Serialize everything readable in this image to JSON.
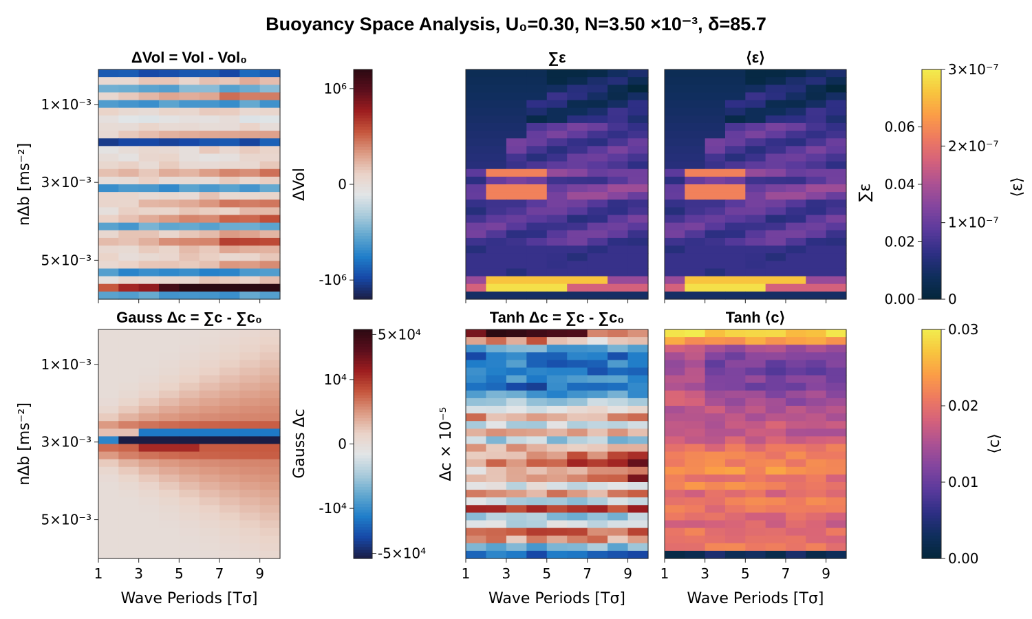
{
  "figure": {
    "title": "Buoyancy Space Analysis, U₀=0.30, N=3.50 ×10⁻³, δ=85.7"
  },
  "colors": {
    "diverging": [
      "#1b1d44",
      "#1747a6",
      "#1f7dc9",
      "#5fa6cf",
      "#a9cbdb",
      "#e2e5e7",
      "#ead3c8",
      "#dc9a83",
      "#c6573d",
      "#9d1d1f",
      "#5a0e1c",
      "#2b0a12"
    ],
    "thermal": [
      "#03273b",
      "#0f2e5c",
      "#2e2f85",
      "#5a3a9c",
      "#82459f",
      "#ab5193",
      "#d4617c",
      "#ee7a60",
      "#fb9c47",
      "#f8c43e",
      "#f2ec4e"
    ]
  },
  "chart_data": [
    {
      "id": "dvol",
      "type": "heatmap",
      "title": "ΔVol = Vol - Vol₀",
      "xlabel": "",
      "ylabel": "nΔb [ms⁻²]",
      "x_ticks": [
        1,
        3,
        5,
        7,
        9
      ],
      "xlim": [
        1,
        10
      ],
      "y_tick_labels": [
        "1×10⁻³",
        "3×10⁻³",
        "5×10⁻³"
      ],
      "y_ticks": [
        1,
        3,
        5
      ],
      "ylim": [
        0.1,
        6.0
      ],
      "y_unit_note": "×10⁻³",
      "colormap": "diverging",
      "clim": [
        -1200000,
        1200000
      ],
      "rows": 30,
      "row_values": [
        -0.9,
        0.35,
        -0.5,
        0.6,
        -0.6,
        0.15,
        -0.15,
        0.1,
        0.3,
        -0.95,
        0.1,
        0.05,
        0.2,
        0.45,
        0.2,
        -0.6,
        0.2,
        0.4,
        0.15,
        0.5,
        -0.55,
        0.25,
        0.7,
        0.3,
        0.2,
        0.4,
        -0.65,
        0.2,
        1.2,
        -0.6
      ],
      "row_trend": [
        0.5,
        0.2,
        0.1,
        0.3,
        -0.2,
        0.4,
        0.2,
        0.1,
        0.6,
        0.2,
        0.3,
        0.1,
        0.2,
        0.8,
        0.2,
        0.3,
        0.2,
        0.9,
        0.5,
        0.7,
        0.2,
        0.9,
        0.6,
        0.4,
        0.3,
        0.5,
        0.2,
        0.4,
        1.6,
        0.3
      ]
    },
    {
      "id": "dvol_cbar",
      "type": "colorbar",
      "ylabel": "ΔVol",
      "tick_labels": [
        "10⁶",
        "0",
        "-10⁶"
      ],
      "ticks": [
        1000000,
        0,
        -1000000
      ],
      "clim": [
        -1200000,
        1200000
      ],
      "colormap": "diverging"
    },
    {
      "id": "sum_eps",
      "type": "heatmap",
      "title": "∑ε",
      "x_ticks": [
        1,
        3,
        5,
        7,
        9
      ],
      "xlim": [
        1,
        10
      ],
      "colormap": "thermal",
      "clim": [
        0,
        0.08
      ],
      "rows": 30,
      "hot_rows": {
        "13": 0.045,
        "15": 0.04,
        "16": 0.038,
        "27": 0.055,
        "28": 0.075
      }
    },
    {
      "id": "mean_eps",
      "type": "heatmap",
      "title": "⟨ε⟩",
      "x_ticks": [
        1,
        3,
        5,
        7,
        9
      ],
      "xlim": [
        1,
        10
      ],
      "colormap": "thermal",
      "clim": [
        0,
        3e-07
      ],
      "rows": 30
    },
    {
      "id": "eps_cbar",
      "type": "colorbar",
      "left_label": "∑ε",
      "left_ticks": [
        0.0,
        0.02,
        0.04,
        0.06
      ],
      "left_tick_labels": [
        "0.00",
        "0.02",
        "0.04",
        "0.06"
      ],
      "left_clim": [
        0,
        0.08
      ],
      "right_label": "⟨ε⟩",
      "right_ticks": [
        0,
        1e-07,
        2e-07,
        3e-07
      ],
      "right_tick_labels": [
        "0",
        "1×10⁻⁷",
        "2×10⁻⁷",
        "3×10⁻⁷"
      ],
      "right_clim": [
        0,
        3e-07
      ],
      "colormap": "thermal"
    },
    {
      "id": "gauss_dc",
      "type": "heatmap",
      "title": "Gauss Δc = ∑c - ∑c₀",
      "xlabel": "Wave Periods [Tσ]",
      "ylabel": "nΔb [ms⁻²]",
      "x_ticks": [
        1,
        3,
        5,
        7,
        9
      ],
      "xlim": [
        1,
        10
      ],
      "y_tick_labels": [
        "1×10⁻³",
        "3×10⁻³",
        "5×10⁻³"
      ],
      "y_ticks": [
        1,
        3,
        5
      ],
      "ylim": [
        0.1,
        6.0
      ],
      "colormap": "diverging",
      "clim": [
        -60000,
        60000
      ],
      "center_row": 14
    },
    {
      "id": "gauss_cbar",
      "type": "colorbar",
      "ylabel": "Gauss Δc",
      "tick_labels": [
        "5×10⁴",
        "10⁴",
        "0",
        "-10⁴",
        "-5×10⁴"
      ],
      "ticks": [
        50000,
        10000,
        0,
        -10000,
        -50000
      ],
      "symlog": true,
      "colormap": "diverging"
    },
    {
      "id": "tanh_dc",
      "type": "heatmap",
      "title": "Tanh Δc = ∑c - ∑c₀",
      "xlabel": "Wave Periods [Tσ]",
      "ylabel": "Δc × 10⁻⁵",
      "x_ticks": [
        1,
        3,
        5,
        7,
        9
      ],
      "xlim": [
        1,
        10
      ],
      "colormap": "diverging",
      "rows": 30,
      "row_values": [
        0.95,
        0.75,
        -0.55,
        -0.75,
        -0.7,
        -0.75,
        -0.65,
        -0.8,
        -0.55,
        -0.3,
        -0.1,
        0.3,
        -0.2,
        0.25,
        -0.3,
        0.2,
        0.35,
        0.55,
        0.3,
        0.45,
        -0.1,
        0.35,
        -0.25,
        0.6,
        -0.3,
        -0.2,
        0.45,
        0.3,
        -0.45,
        -0.8
      ]
    },
    {
      "id": "tanh_c",
      "type": "heatmap",
      "title": "Tanh ⟨c⟩",
      "xlabel": "Wave Periods [Tσ]",
      "x_ticks": [
        1,
        3,
        5,
        7,
        9
      ],
      "xlim": [
        1,
        10
      ],
      "colormap": "thermal",
      "clim": [
        0,
        0.03
      ],
      "rows": 30,
      "row_values": [
        0.028,
        0.024,
        0.014,
        0.012,
        0.011,
        0.01,
        0.012,
        0.011,
        0.013,
        0.014,
        0.016,
        0.015,
        0.017,
        0.016,
        0.018,
        0.02,
        0.021,
        0.022,
        0.023,
        0.02,
        0.022,
        0.019,
        0.021,
        0.02,
        0.019,
        0.018,
        0.02,
        0.019,
        0.021,
        0.003
      ]
    },
    {
      "id": "c_cbar",
      "type": "colorbar",
      "ylabel": "⟨c⟩",
      "ticks": [
        0.0,
        0.01,
        0.02,
        0.03
      ],
      "tick_labels": [
        "0.00",
        "0.01",
        "0.02",
        "0.03"
      ],
      "clim": [
        0,
        0.03
      ],
      "colormap": "thermal"
    }
  ]
}
